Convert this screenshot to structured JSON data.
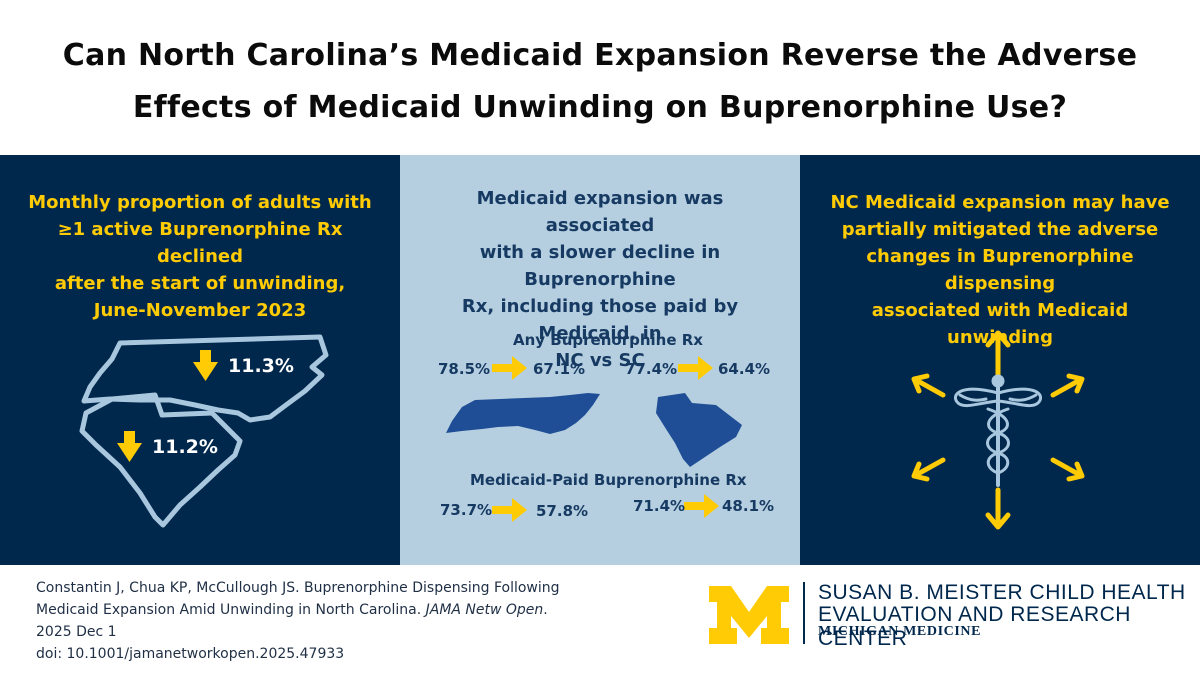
{
  "title": {
    "line1": "Can North Carolina’s Medicaid Expansion Reverse the Adverse",
    "line2": "Effects of Medicaid Unwinding on Buprenorphine Use?"
  },
  "left_panel": {
    "heading_lines": [
      "Monthly proportion of adults with",
      "≥1 active Buprenorphine Rx declined",
      "after the start of unwinding,",
      "June-November 2023"
    ],
    "nc_decline": "11.3%",
    "sc_decline": "11.2%"
  },
  "middle_panel": {
    "heading_lines": [
      "Medicaid expansion was associated",
      "with a slower decline in Buprenorphine",
      "Rx, including those paid by Medicaid, in",
      "NC vs SC"
    ],
    "any_label": "Any Buprenorphine Rx",
    "any_nc_from": "78.5%",
    "any_nc_to": "67.1%",
    "any_sc_from": "77.4%",
    "any_sc_to": "64.4%",
    "medicaid_label": "Medicaid-Paid Buprenorphine Rx",
    "med_nc_from": "73.7%",
    "med_nc_to": "57.8%",
    "med_sc_from": "71.4%",
    "med_sc_to": "48.1%"
  },
  "right_panel": {
    "heading_lines": [
      "NC Medicaid expansion may have",
      "partially mitigated the adverse",
      "changes in Buprenorphine dispensing",
      "associated with Medicaid unwinding"
    ]
  },
  "citation": {
    "line1": "Constantin J, Chua KP, McCullough JS. Buprenorphine Dispensing Following",
    "line2_prefix": "Medicaid Expansion Amid Unwinding in North Carolina.",
    "journal": "JAMA Netw Open",
    "line2_suffix": ".",
    "line3": "2025 Dec 1",
    "line4": "doi: 10.1001/jamanetworkopen.2025.47933"
  },
  "branding": {
    "logo_letter": "M",
    "org_line1": "SUSAN B. MEISTER CHILD HEALTH",
    "org_line2": "EVALUATION AND RESEARCH CENTER",
    "org_line3": "MICHIGAN MEDICINE"
  },
  "colors": {
    "navy": "#00274c",
    "maize": "#ffcb05",
    "light_blue": "#b5cfe0",
    "state_blue": "#1f4e96",
    "outline_blue": "#a8c7de"
  }
}
